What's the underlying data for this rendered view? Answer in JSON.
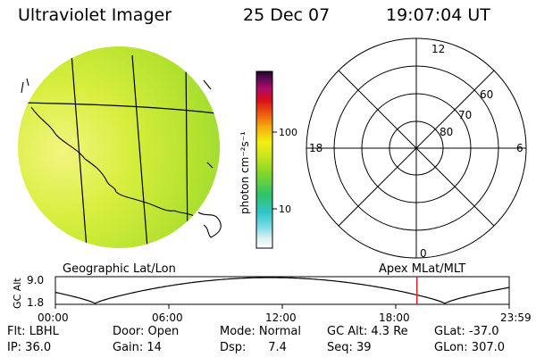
{
  "header": {
    "instrument": "Ultraviolet Imager",
    "date": "25 Dec 07",
    "time": "19:07:04 UT"
  },
  "colorbar": {
    "label": "photon cm⁻²s⁻¹",
    "ticks": [
      "100",
      "10"
    ]
  },
  "polar": {
    "hours": {
      "top": "12",
      "left": "18",
      "right": "6",
      "bottom": "0"
    },
    "lat_labels": [
      "60",
      "70",
      "80"
    ]
  },
  "projection_labels": {
    "left": "Geographic Lat/Lon",
    "right": "Apex  MLat/MLT"
  },
  "altitude_plot": {
    "ylabel": "GC Alt",
    "yticks": [
      "9.0",
      "1.8"
    ],
    "xticks": [
      "00:00",
      "06:00",
      "12:00",
      "18:00",
      "23:59"
    ],
    "marker_hour": 19.12,
    "colors": {
      "curve": "#000000",
      "marker": "#dd2222"
    }
  },
  "info": {
    "row1": {
      "filter": "Flt: LBHL",
      "door": "Door: Open",
      "mode": "Mode: Normal",
      "gc_alt": "GC Alt: 4.3 Re",
      "glat": "GLat: -37.0"
    },
    "row2": {
      "ip": "IP: 36.0",
      "gain": "Gain: 14",
      "dsp": "Dsp:      7.4",
      "seq": "Seq: 39",
      "glon": "GLon: 307.0"
    }
  }
}
